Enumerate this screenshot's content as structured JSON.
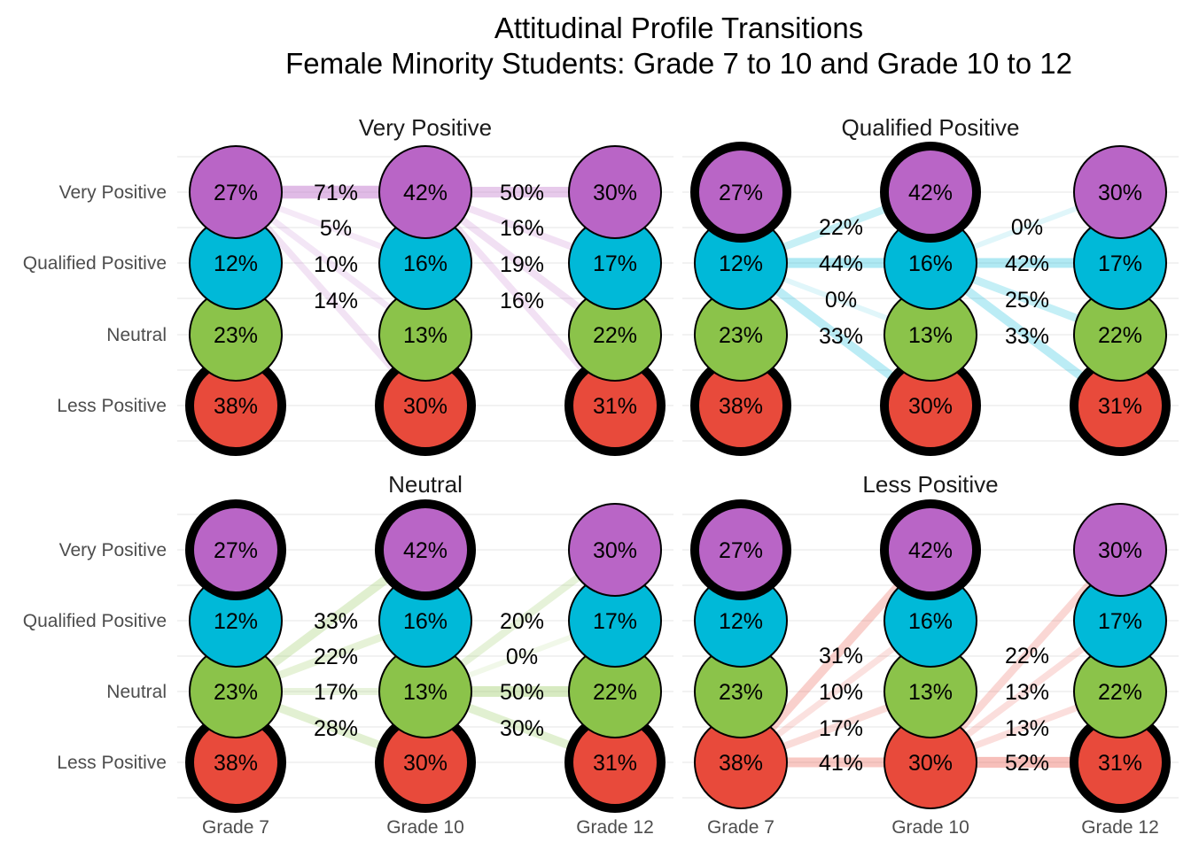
{
  "chart_data": {
    "type": "alluvial",
    "title": "Attitudinal Profile Transitions",
    "subtitle": "Female Minority Students: Grade 7 to 10 and Grade 10 to 12",
    "grades": [
      "Grade 7",
      "Grade 10",
      "Grade 12"
    ],
    "profiles": [
      "Very Positive",
      "Qualified Positive",
      "Neutral",
      "Less Positive"
    ],
    "colors": {
      "Very Positive": "#b965c6",
      "Qualified Positive": "#00b9d8",
      "Neutral": "#8bc34a",
      "Less Positive": "#e84a3b"
    },
    "node_values": {
      "Grade 7": [
        "27%",
        "12%",
        "23%",
        "38%"
      ],
      "Grade 10": [
        "42%",
        "16%",
        "13%",
        "30%"
      ],
      "Grade 12": [
        "30%",
        "17%",
        "22%",
        "31%"
      ]
    },
    "panels": [
      {
        "name": "Very Positive",
        "from_index": 0,
        "transitions_7_10": [
          "71%",
          "5%",
          "10%",
          "14%"
        ],
        "transitions_10_12": [
          "50%",
          "16%",
          "19%",
          "16%"
        ]
      },
      {
        "name": "Qualified Positive",
        "from_index": 1,
        "transitions_7_10": [
          "22%",
          "44%",
          "0%",
          "33%"
        ],
        "transitions_10_12": [
          "0%",
          "42%",
          "25%",
          "33%"
        ]
      },
      {
        "name": "Neutral",
        "from_index": 2,
        "transitions_7_10": [
          "33%",
          "22%",
          "17%",
          "28%"
        ],
        "transitions_10_12": [
          "20%",
          "0%",
          "50%",
          "30%"
        ]
      },
      {
        "name": "Less Positive",
        "from_index": 3,
        "transitions_7_10": [
          "31%",
          "10%",
          "17%",
          "41%"
        ],
        "transitions_10_12": [
          "22%",
          "13%",
          "13%",
          "52%"
        ]
      }
    ]
  }
}
